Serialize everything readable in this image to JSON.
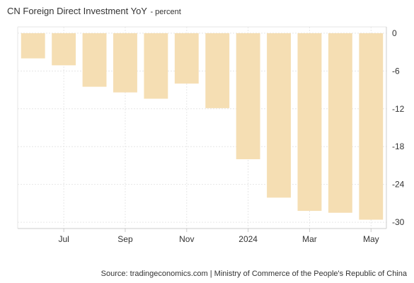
{
  "header": {
    "title": "CN Foreign Direct Investment YoY",
    "unit": "- percent"
  },
  "footer": {
    "source": "Source: tradingeconomics.com | Ministry of Commerce of the People's Republic of China"
  },
  "colors": {
    "bar": "#f5deb3",
    "grid": "#e6e6e6",
    "frame": "#cccccc"
  },
  "chart_data": {
    "type": "bar",
    "categories": [
      "Jun 2023",
      "Jul 2023",
      "Aug 2023",
      "Sep 2023",
      "Oct 2023",
      "Nov 2023",
      "Dec 2023",
      "Jan 2024",
      "Feb 2024",
      "Mar 2024",
      "Apr 2024",
      "May 2024"
    ],
    "values": [
      -4.0,
      -5.1,
      -8.5,
      -9.4,
      -10.4,
      -8.0,
      -11.9,
      -20.0,
      -26.1,
      -28.2,
      -28.5,
      -29.6
    ],
    "x_tick_labels": [
      "Jul",
      "Sep",
      "Nov",
      "2024",
      "Mar",
      "May"
    ],
    "x_tick_categories": [
      "Jul 2023",
      "Sep 2023",
      "Nov 2023",
      "Jan 2024",
      "Mar 2024",
      "May 2024"
    ],
    "y_ticks": [
      0,
      -6,
      -12,
      -18,
      -24,
      -30
    ],
    "ylim": [
      -31,
      1
    ],
    "y_axis_side": "right",
    "grid": true,
    "legend": "none"
  }
}
